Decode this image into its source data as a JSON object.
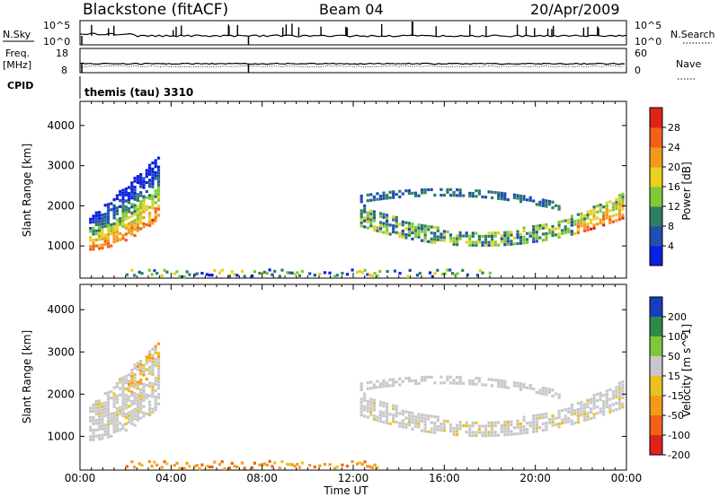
{
  "header": {
    "station": "Blackstone (fitACF)",
    "beam": "Beam 04",
    "date": "20/Apr/2009"
  },
  "top_panels": {
    "nsky_label": "N.Sky",
    "nsky_ticks": [
      "10^5",
      "10^0"
    ],
    "nsearch_label": "N.Search",
    "nsearch_ticks": [
      "10^5",
      "10^0"
    ],
    "freq_label_line1": "Freq.",
    "freq_label_line2": "[MHz]",
    "freq_ticks": [
      "18",
      "8"
    ],
    "nave_label": "Nave",
    "nave_ticks": [
      "60",
      "0"
    ],
    "cpid_label": "CPID",
    "cpid_value": "themis (tau) 3310"
  },
  "chart_data": [
    {
      "type": "heatmap",
      "title": "",
      "quantity": "Power",
      "ylabel": "Slant Range [km]",
      "ylim": [
        200,
        4600
      ],
      "yticks": [
        "1000",
        "2000",
        "3000",
        "4000"
      ],
      "colorbar": {
        "label": "Power [dB]",
        "ticks": [
          "4",
          "8",
          "12",
          "16",
          "20",
          "24",
          "28"
        ],
        "colors": [
          "#0a1fe0",
          "#1f4fb0",
          "#2e7d62",
          "#7fca35",
          "#e8d020",
          "#f39a1c",
          "#f2601a",
          "#e0231a"
        ]
      },
      "features": [
        {
          "name": "dawn echo band",
          "time_h": [
            0.4,
            3.4
          ],
          "range_km": [
            950,
            3300
          ]
        },
        {
          "name": "evening echo band",
          "time_h": [
            12.3,
            24.0
          ],
          "range_km": [
            950,
            2500
          ]
        },
        {
          "name": "near-range scatter",
          "time_h": [
            2.0,
            18.0
          ],
          "range_km": [
            250,
            450
          ]
        }
      ]
    },
    {
      "type": "heatmap",
      "title": "",
      "quantity": "Velocity",
      "ylabel": "Slant Range [km]",
      "ylim": [
        200,
        4600
      ],
      "yticks": [
        "1000",
        "2000",
        "3000",
        "4000"
      ],
      "colorbar": {
        "label": "Velocity [m s^-1]",
        "ticks": [
          "200",
          "100",
          "50",
          "15",
          "-15",
          "-50",
          "-100",
          "-200"
        ],
        "colors": [
          "#1a3dbf",
          "#2e8a4a",
          "#7cc83a",
          "#c8c8c8",
          "#e9c21f",
          "#f39a1c",
          "#f2601a",
          "#e0231a"
        ]
      },
      "features": [
        {
          "name": "dawn echo band",
          "time_h": [
            0.4,
            3.4
          ],
          "range_km": [
            950,
            3300
          ]
        },
        {
          "name": "evening echo band",
          "time_h": [
            12.3,
            24.0
          ],
          "range_km": [
            950,
            2500
          ]
        },
        {
          "name": "ground scatter strip",
          "time_h": [
            2.0,
            13.0
          ],
          "range_km": [
            250,
            420
          ]
        }
      ]
    }
  ],
  "x_axis": {
    "label": "Time UT",
    "ticks": [
      "00:00",
      "04:00",
      "08:00",
      "12:00",
      "16:00",
      "20:00",
      "00:00"
    ],
    "range_h": [
      0,
      24
    ]
  }
}
